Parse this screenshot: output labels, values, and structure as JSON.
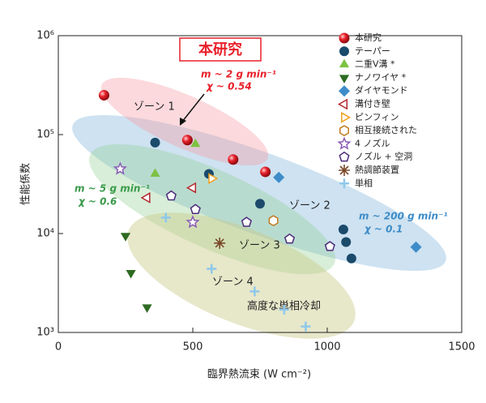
{
  "chart_data": {
    "type": "scatter",
    "xlabel": "臨界熱流束 (W cm⁻²)",
    "ylabel": "性能係数",
    "xlim": [
      0,
      1500
    ],
    "xticks": [
      0,
      500,
      1000,
      1500
    ],
    "ylim": [
      1000,
      1000000
    ],
    "log_y": true,
    "yticks": [
      {
        "value": 1000,
        "label": "10³"
      },
      {
        "value": 10000,
        "label": "10⁴"
      },
      {
        "value": 100000,
        "label": "10⁵"
      },
      {
        "value": 1000000,
        "label": "10⁶"
      }
    ],
    "annotations": [
      "本研究",
      "m ~ 2 g min⁻¹",
      "χ ~ 0.54",
      "ゾーン 1",
      "m ~ 5 g min⁻¹",
      "χ ~ 0.6",
      "ゾーン 2",
      "m ~ 200 g min⁻¹",
      "χ ~ 0.1",
      "ゾーン 3",
      "ゾーン 4",
      "高度な単相冷却"
    ],
    "series": [
      {
        "name": "本研究",
        "color": "#e8202a",
        "marker": "sphere",
        "x": [
          170,
          480,
          650,
          770
        ],
        "values": [
          250000,
          88000,
          56000,
          42000
        ]
      },
      {
        "name": "テーパー",
        "color": "#1b4a6b",
        "marker": "circle",
        "x": [
          360,
          560,
          750,
          1060,
          1070,
          1090
        ],
        "values": [
          83000,
          40000,
          20000,
          11000,
          8200,
          5600
        ]
      },
      {
        "name": "二重V溝 *",
        "color": "#7dc242",
        "marker": "triangle-up",
        "x": [
          510,
          360
        ],
        "values": [
          80000,
          40000
        ]
      },
      {
        "name": "ナノワイヤ *",
        "color": "#2d6b22",
        "marker": "triangle-down",
        "x": [
          250,
          270,
          330
        ],
        "values": [
          9500,
          4000,
          1800
        ]
      },
      {
        "name": "ダイヤモンド",
        "color": "#3d8cc9",
        "marker": "diamond",
        "x": [
          820,
          1330
        ],
        "values": [
          37000,
          7300
        ]
      },
      {
        "name": "溝付き壁",
        "color": "#b3272d",
        "marker": "triangle-left",
        "x": [
          330,
          500
        ],
        "values": [
          23000,
          29000
        ]
      },
      {
        "name": "ピンフィン",
        "color": "#f0a020",
        "marker": "triangle-right",
        "x": [
          570
        ],
        "values": [
          36000
        ]
      },
      {
        "name": "相互接続された",
        "color": "#c07a20",
        "marker": "hexagon",
        "x": [
          800
        ],
        "values": [
          13500
        ]
      },
      {
        "name": "4 ノズル",
        "color": "#8a5db5",
        "marker": "star",
        "x": [
          230,
          500
        ],
        "values": [
          45000,
          13000
        ]
      },
      {
        "name": "ノズル + 空洞",
        "color": "#4b2a7a",
        "marker": "pentagon",
        "x": [
          420,
          510,
          700,
          860,
          1010
        ],
        "values": [
          24000,
          17500,
          13000,
          8800,
          7400
        ]
      },
      {
        "name": "熱調節装置",
        "color": "#7a4a2a",
        "marker": "asterisk",
        "x": [
          600
        ],
        "values": [
          8000
        ]
      },
      {
        "name": "単相",
        "color": "#8ec8ea",
        "marker": "plus",
        "x": [
          400,
          570,
          730,
          840,
          920
        ],
        "values": [
          14500,
          4400,
          2600,
          1700,
          1150
        ]
      }
    ]
  }
}
